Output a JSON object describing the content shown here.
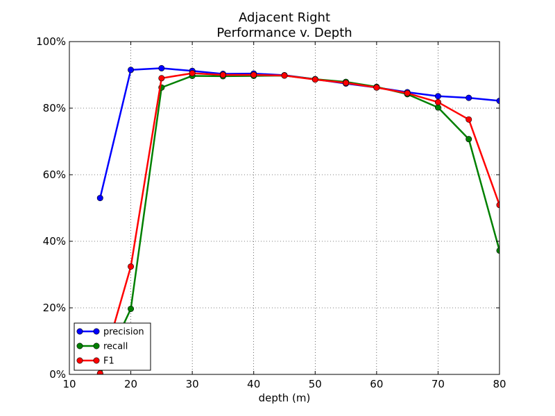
{
  "chart_data": {
    "type": "line",
    "title_line1": "Adjacent Right",
    "title_line2": "Performance v. Depth",
    "xlabel": "depth (m)",
    "ylabel": "",
    "xlim": [
      10,
      80
    ],
    "ylim": [
      0,
      1
    ],
    "x_ticks": [
      10,
      20,
      30,
      40,
      50,
      60,
      70,
      80
    ],
    "x_tick_labels": [
      "10",
      "20",
      "30",
      "40",
      "50",
      "60",
      "70",
      "80"
    ],
    "y_ticks": [
      0,
      0.2,
      0.4,
      0.6,
      0.8,
      1.0
    ],
    "y_tick_labels": [
      "0%",
      "20%",
      "40%",
      "60%",
      "80%",
      "100%"
    ],
    "grid": true,
    "legend_position": "lower-left",
    "x": [
      15,
      20,
      25,
      30,
      35,
      40,
      45,
      50,
      55,
      60,
      65,
      70,
      75,
      80
    ],
    "series": [
      {
        "name": "precision",
        "color": "#0000ff",
        "values": [
          0.53,
          0.915,
          0.92,
          0.912,
          0.903,
          0.904,
          0.899,
          0.887,
          0.874,
          0.862,
          0.848,
          0.836,
          0.831,
          0.822
        ]
      },
      {
        "name": "recall",
        "color": "#008000",
        "values": [
          0.0,
          0.197,
          0.862,
          0.897,
          0.896,
          0.897,
          0.898,
          0.887,
          0.879,
          0.864,
          0.842,
          0.802,
          0.707,
          0.372
        ]
      },
      {
        "name": "F1",
        "color": "#ff0000",
        "values": [
          0.003,
          0.324,
          0.89,
          0.905,
          0.9,
          0.9,
          0.898,
          0.886,
          0.876,
          0.862,
          0.845,
          0.818,
          0.766,
          0.509
        ]
      }
    ]
  }
}
